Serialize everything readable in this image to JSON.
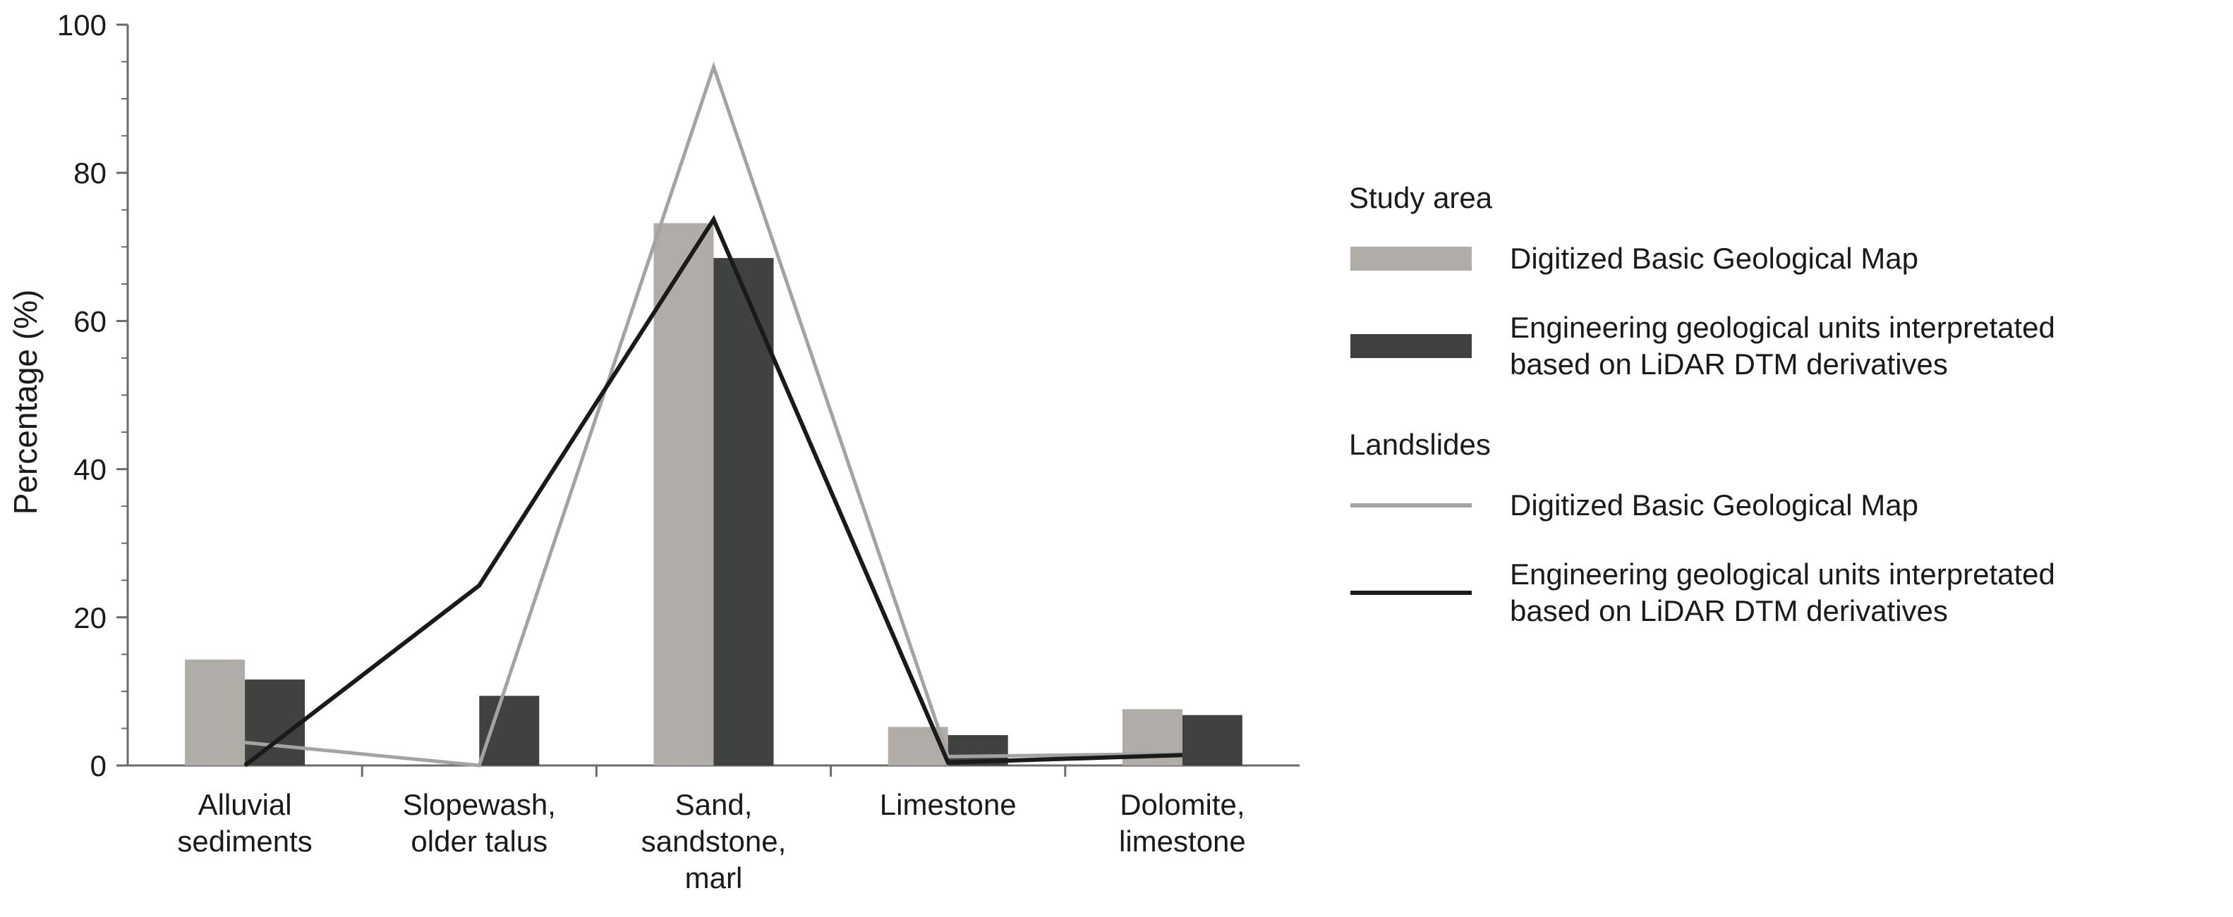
{
  "chart_data": {
    "type": "bar",
    "categories": [
      [
        "Alluvial",
        "sediments"
      ],
      [
        "Slopewash,",
        "older talus"
      ],
      [
        "Sand,",
        "sandstone,",
        "marl"
      ],
      [
        "Limestone"
      ],
      [
        "Dolomite,",
        "limestone"
      ]
    ],
    "ylabel": "Percentage (%)",
    "xlabel": "",
    "ylim": [
      0,
      100
    ],
    "yticks": [
      0,
      20,
      40,
      60,
      80,
      100
    ],
    "grid": false,
    "legend_position": "right",
    "groups": [
      {
        "heading": "Study area",
        "kind": "bar",
        "series": [
          {
            "name": "Digitized Basic Geological Map",
            "color": "#b0aca8",
            "values": [
              14.3,
              0,
              73.2,
              5.2,
              7.6
            ]
          },
          {
            "name": [
              "Engineering geological units interpretated",
              "based on LiDAR DTM derivatives"
            ],
            "color": "#3f423e",
            "values": [
              11.6,
              9.4,
              68.5,
              4.1,
              6.8
            ]
          }
        ]
      },
      {
        "heading": "Landslides",
        "kind": "line",
        "series": [
          {
            "name": "Digitized Basic Geological Map",
            "color": "#a3a3a3",
            "values": [
              3.1,
              0,
              94.3,
              1.2,
              1.6
            ]
          },
          {
            "name": [
              "Engineering geological units interpretated",
              "based on LiDAR DTM derivatives"
            ],
            "color": "#1a1a1a",
            "values": [
              0,
              24.3,
              73.7,
              0.4,
              1.4
            ]
          }
        ]
      }
    ]
  }
}
